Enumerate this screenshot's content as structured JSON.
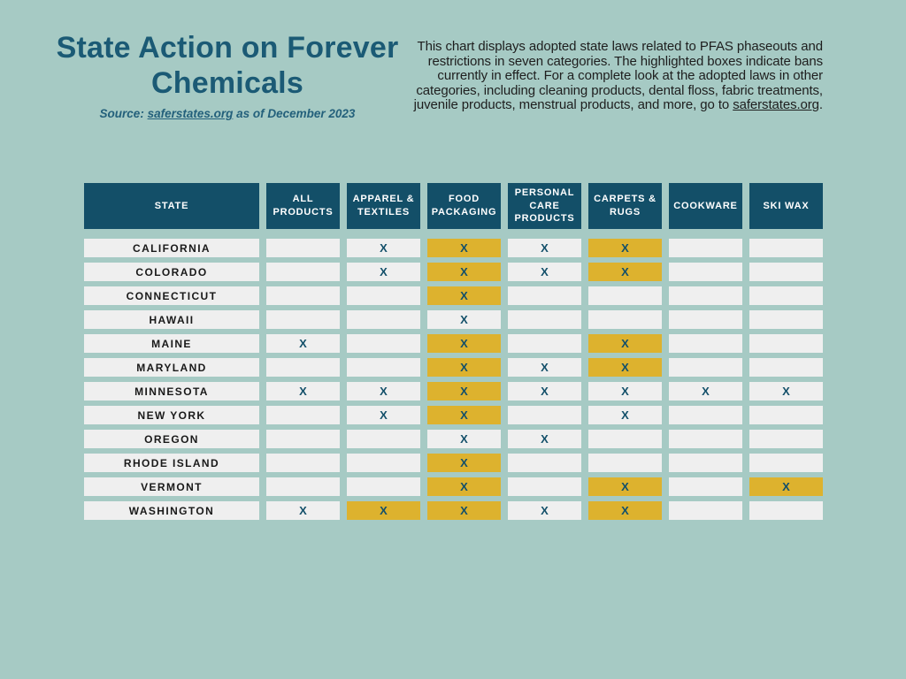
{
  "colors": {
    "background": "#a6cac4",
    "header_bg": "#134f68",
    "cell_bg": "#efefef",
    "highlight": "#ddb22e",
    "mark": "#14506a",
    "title": "#1b5a75",
    "text_dark": "#1e1e1e"
  },
  "header": {
    "title": "State Action on Forever Chemicals",
    "source_prefix": "Source: ",
    "source_link": "saferstates.org",
    "source_suffix": " as of December 2023",
    "description_text": "This chart displays adopted state laws related to PFAS phaseouts and restrictions in seven categories. The highlighted boxes indicate bans currently in effect. For a complete look at the adopted laws in other categories, including cleaning products, dental floss, fabric treatments, juvenile products, menstrual products, and more, go to ",
    "description_link": "saferstates.org",
    "description_end": "."
  },
  "chart_data": {
    "type": "table",
    "title": "State Action on Forever Chemicals",
    "source": "saferstates.org as of December 2023",
    "highlight_meaning": "Highlighted (gold) boxes indicate bans currently in effect",
    "mark_symbol": "X",
    "columns": [
      "STATE",
      "ALL PRODUCTS",
      "APPAREL & TEXTILES",
      "FOOD PACKAGING",
      "PERSONAL CARE PRODUCTS",
      "CARPETS & RUGS",
      "COOKWARE",
      "SKI WAX"
    ],
    "rows": [
      {
        "state": "CALIFORNIA",
        "cells": [
          {
            "mark": "",
            "ban_in_effect": false
          },
          {
            "mark": "X",
            "ban_in_effect": false
          },
          {
            "mark": "X",
            "ban_in_effect": true
          },
          {
            "mark": "X",
            "ban_in_effect": false
          },
          {
            "mark": "X",
            "ban_in_effect": true
          },
          {
            "mark": "",
            "ban_in_effect": false
          },
          {
            "mark": "",
            "ban_in_effect": false
          }
        ]
      },
      {
        "state": "COLORADO",
        "cells": [
          {
            "mark": "",
            "ban_in_effect": false
          },
          {
            "mark": "X",
            "ban_in_effect": false
          },
          {
            "mark": "X",
            "ban_in_effect": true
          },
          {
            "mark": "X",
            "ban_in_effect": false
          },
          {
            "mark": "X",
            "ban_in_effect": true
          },
          {
            "mark": "",
            "ban_in_effect": false
          },
          {
            "mark": "",
            "ban_in_effect": false
          }
        ]
      },
      {
        "state": "CONNECTICUT",
        "cells": [
          {
            "mark": "",
            "ban_in_effect": false
          },
          {
            "mark": "",
            "ban_in_effect": false
          },
          {
            "mark": "X",
            "ban_in_effect": true
          },
          {
            "mark": "",
            "ban_in_effect": false
          },
          {
            "mark": "",
            "ban_in_effect": false
          },
          {
            "mark": "",
            "ban_in_effect": false
          },
          {
            "mark": "",
            "ban_in_effect": false
          }
        ]
      },
      {
        "state": "HAWAII",
        "cells": [
          {
            "mark": "",
            "ban_in_effect": false
          },
          {
            "mark": "",
            "ban_in_effect": false
          },
          {
            "mark": "X",
            "ban_in_effect": false
          },
          {
            "mark": "",
            "ban_in_effect": false
          },
          {
            "mark": "",
            "ban_in_effect": false
          },
          {
            "mark": "",
            "ban_in_effect": false
          },
          {
            "mark": "",
            "ban_in_effect": false
          }
        ]
      },
      {
        "state": "MAINE",
        "cells": [
          {
            "mark": "X",
            "ban_in_effect": false
          },
          {
            "mark": "",
            "ban_in_effect": false
          },
          {
            "mark": "X",
            "ban_in_effect": true
          },
          {
            "mark": "",
            "ban_in_effect": false
          },
          {
            "mark": "X",
            "ban_in_effect": true
          },
          {
            "mark": "",
            "ban_in_effect": false
          },
          {
            "mark": "",
            "ban_in_effect": false
          }
        ]
      },
      {
        "state": "MARYLAND",
        "cells": [
          {
            "mark": "",
            "ban_in_effect": false
          },
          {
            "mark": "",
            "ban_in_effect": false
          },
          {
            "mark": "X",
            "ban_in_effect": true
          },
          {
            "mark": "X",
            "ban_in_effect": false
          },
          {
            "mark": "X",
            "ban_in_effect": true
          },
          {
            "mark": "",
            "ban_in_effect": false
          },
          {
            "mark": "",
            "ban_in_effect": false
          }
        ]
      },
      {
        "state": "MINNESOTA",
        "cells": [
          {
            "mark": "X",
            "ban_in_effect": false
          },
          {
            "mark": "X",
            "ban_in_effect": false
          },
          {
            "mark": "X",
            "ban_in_effect": true
          },
          {
            "mark": "X",
            "ban_in_effect": false
          },
          {
            "mark": "X",
            "ban_in_effect": false
          },
          {
            "mark": "X",
            "ban_in_effect": false
          },
          {
            "mark": "X",
            "ban_in_effect": false
          }
        ]
      },
      {
        "state": "NEW YORK",
        "cells": [
          {
            "mark": "",
            "ban_in_effect": false
          },
          {
            "mark": "X",
            "ban_in_effect": false
          },
          {
            "mark": "X",
            "ban_in_effect": true
          },
          {
            "mark": "",
            "ban_in_effect": false
          },
          {
            "mark": "X",
            "ban_in_effect": false
          },
          {
            "mark": "",
            "ban_in_effect": false
          },
          {
            "mark": "",
            "ban_in_effect": false
          }
        ]
      },
      {
        "state": "OREGON",
        "cells": [
          {
            "mark": "",
            "ban_in_effect": false
          },
          {
            "mark": "",
            "ban_in_effect": false
          },
          {
            "mark": "X",
            "ban_in_effect": false
          },
          {
            "mark": "X",
            "ban_in_effect": false
          },
          {
            "mark": "",
            "ban_in_effect": false
          },
          {
            "mark": "",
            "ban_in_effect": false
          },
          {
            "mark": "",
            "ban_in_effect": false
          }
        ]
      },
      {
        "state": "RHODE ISLAND",
        "cells": [
          {
            "mark": "",
            "ban_in_effect": false
          },
          {
            "mark": "",
            "ban_in_effect": false
          },
          {
            "mark": "X",
            "ban_in_effect": true
          },
          {
            "mark": "",
            "ban_in_effect": false
          },
          {
            "mark": "",
            "ban_in_effect": false
          },
          {
            "mark": "",
            "ban_in_effect": false
          },
          {
            "mark": "",
            "ban_in_effect": false
          }
        ]
      },
      {
        "state": "VERMONT",
        "cells": [
          {
            "mark": "",
            "ban_in_effect": false
          },
          {
            "mark": "",
            "ban_in_effect": false
          },
          {
            "mark": "X",
            "ban_in_effect": true
          },
          {
            "mark": "",
            "ban_in_effect": false
          },
          {
            "mark": "X",
            "ban_in_effect": true
          },
          {
            "mark": "",
            "ban_in_effect": false
          },
          {
            "mark": "X",
            "ban_in_effect": true
          }
        ]
      },
      {
        "state": "WASHINGTON",
        "cells": [
          {
            "mark": "X",
            "ban_in_effect": false
          },
          {
            "mark": "X",
            "ban_in_effect": true
          },
          {
            "mark": "X",
            "ban_in_effect": true
          },
          {
            "mark": "X",
            "ban_in_effect": false
          },
          {
            "mark": "X",
            "ban_in_effect": true
          },
          {
            "mark": "",
            "ban_in_effect": false
          },
          {
            "mark": "",
            "ban_in_effect": false
          }
        ]
      }
    ]
  }
}
